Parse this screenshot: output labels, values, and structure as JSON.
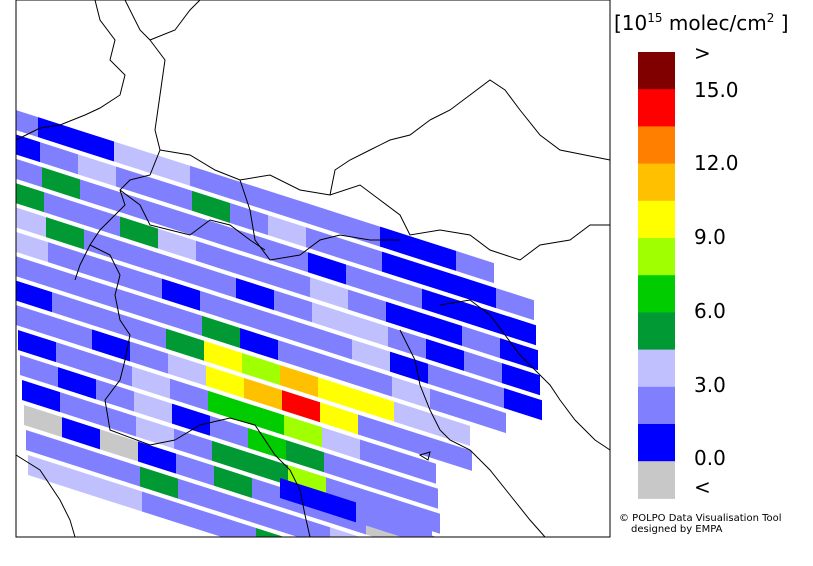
{
  "legend": {
    "unit_prefix": "[",
    "unit_exp_base": "10",
    "unit_exp": "15",
    "unit_text": " molec/cm",
    "unit_sup": "2",
    "unit_suffix": " ]",
    "tick_labels": [
      ">",
      "15.0",
      "12.0",
      "9.0",
      "6.0",
      "3.0",
      "0.0",
      "<"
    ],
    "colors": [
      "#800000",
      "#ff0000",
      "#ff8000",
      "#ffc000",
      "#ffff00",
      "#a0ff00",
      "#00cc00",
      "#009933",
      "#c0c0ff",
      "#8080ff",
      "#0000ff",
      "#c8c8c8"
    ]
  },
  "credits": {
    "line1": "© POLPO Data Visualisation Tool",
    "line2": "designed by EMPA"
  }
}
